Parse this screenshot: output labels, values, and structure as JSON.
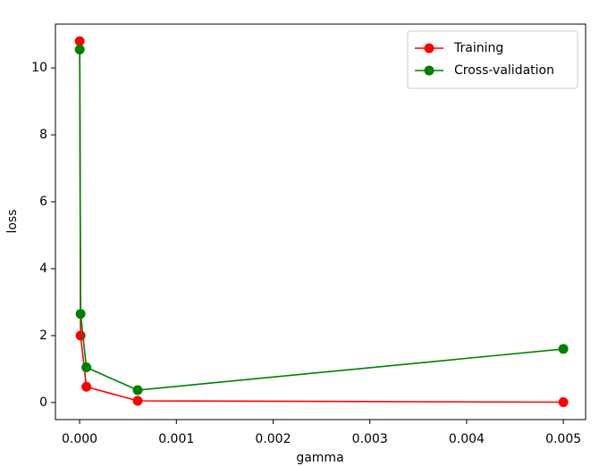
{
  "chart_data": {
    "type": "line",
    "xlabel": "gamma",
    "ylabel": "loss",
    "x": [
      1e-06,
      1e-05,
      7e-05,
      0.0006,
      0.005
    ],
    "series": [
      {
        "name": "Training",
        "color": "#ff0000",
        "values": [
          10.8,
          2.0,
          0.47,
          0.05,
          0.01
        ]
      },
      {
        "name": "Cross-validation",
        "color": "#008000",
        "values": [
          10.55,
          2.65,
          1.05,
          0.37,
          1.6
        ]
      }
    ],
    "xlim": [
      -0.00025,
      0.00523
    ],
    "ylim": [
      -0.51,
      11.31
    ],
    "xticks": [
      {
        "value": 0,
        "label": "0.000"
      },
      {
        "value": 0.001,
        "label": "0.001"
      },
      {
        "value": 0.002,
        "label": "0.002"
      },
      {
        "value": 0.003,
        "label": "0.003"
      },
      {
        "value": 0.004,
        "label": "0.004"
      },
      {
        "value": 0.005,
        "label": "0.005"
      }
    ],
    "yticks": [
      0,
      2,
      4,
      6,
      8,
      10
    ],
    "grid": false,
    "legend": "upper right"
  }
}
